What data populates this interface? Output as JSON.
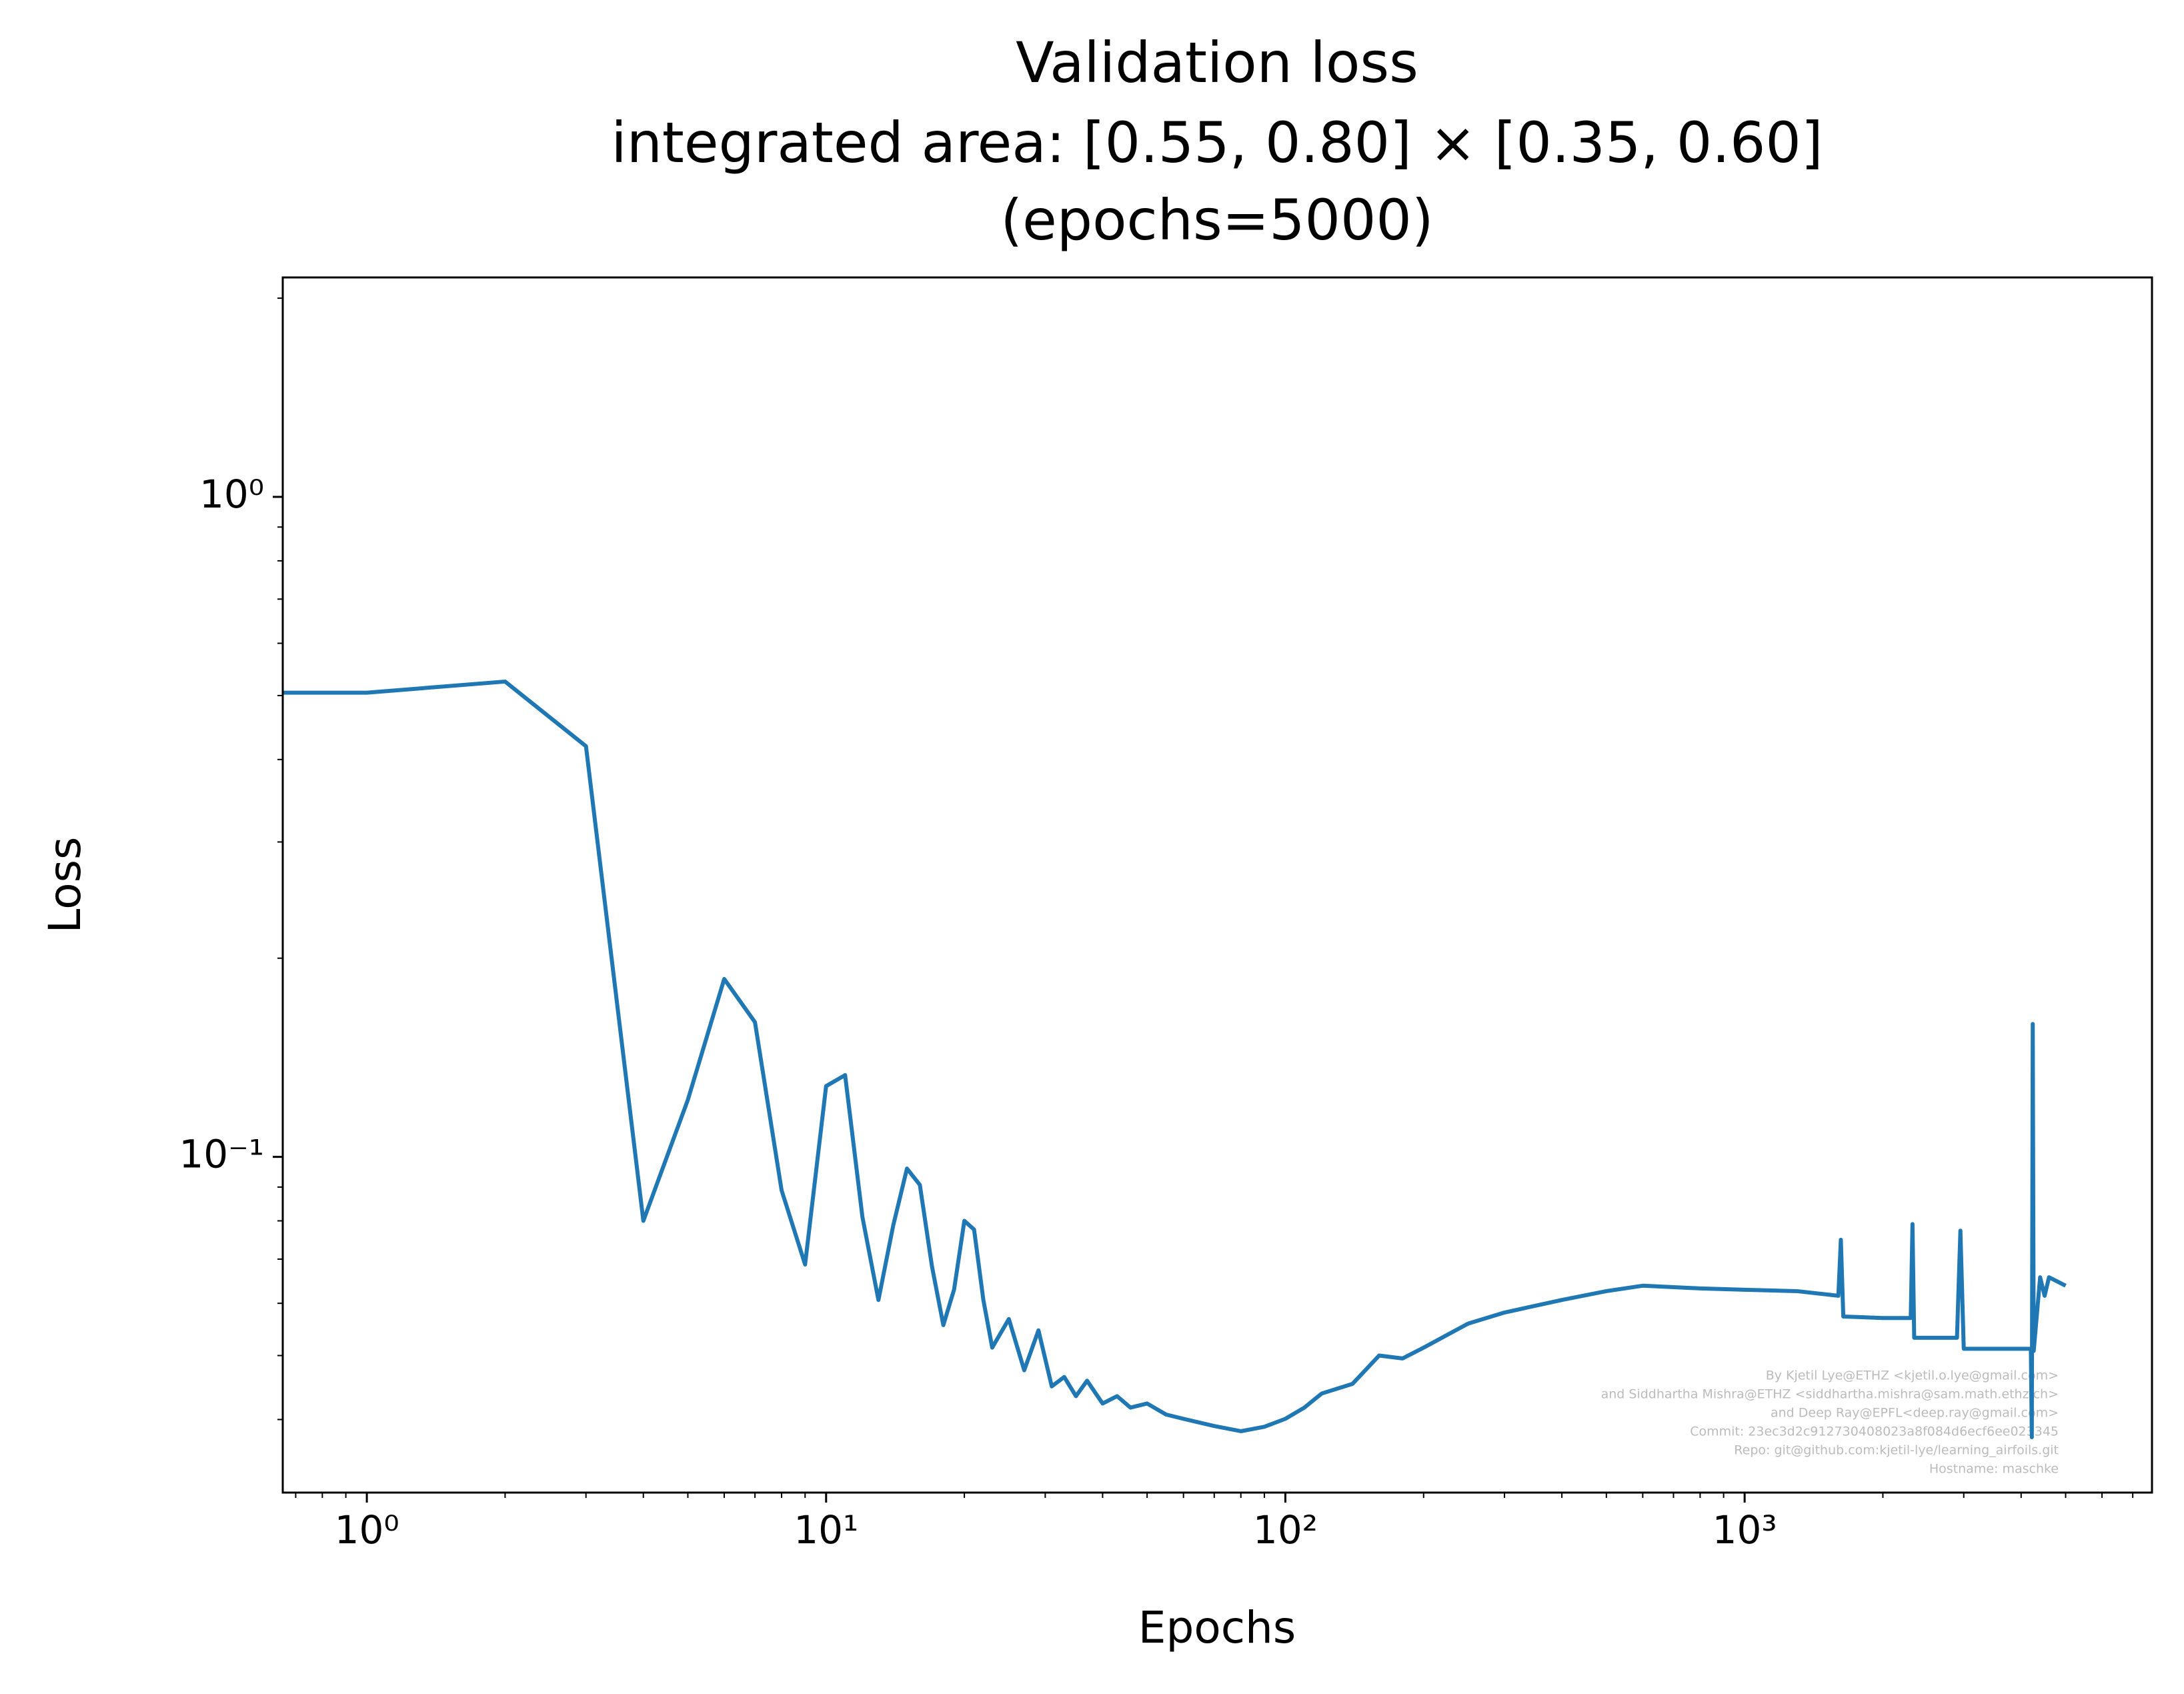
{
  "chart_data": {
    "type": "line",
    "title": [
      "Validation loss",
      "integrated area: [0.55, 0.80] × [0.35, 0.60]",
      "(epochs=5000)"
    ],
    "xlabel": "Epochs",
    "ylabel": "Loss",
    "xscale": "log",
    "yscale": "log",
    "grid": false,
    "xlim": [
      0.656,
      7709
    ],
    "ylim": [
      0.031,
      2.15
    ],
    "xticks": [
      {
        "value": 1,
        "label": "10⁰"
      },
      {
        "value": 10,
        "label": "10¹"
      },
      {
        "value": 100,
        "label": "10²"
      },
      {
        "value": 1000,
        "label": "10³"
      }
    ],
    "xminorticks": [
      0.7,
      0.8,
      0.9,
      2,
      3,
      4,
      5,
      6,
      7,
      8,
      9,
      20,
      30,
      40,
      50,
      60,
      70,
      80,
      90,
      200,
      300,
      400,
      500,
      600,
      700,
      800,
      900,
      2000,
      3000,
      4000,
      5000,
      6000,
      7000
    ],
    "yticks": [
      {
        "value": 0.1,
        "label": "10⁻¹"
      },
      {
        "value": 1,
        "label": "10⁰"
      }
    ],
    "yminorticks": [
      0.04,
      0.05,
      0.06,
      0.07,
      0.08,
      0.09,
      0.2,
      0.3,
      0.4,
      0.5,
      0.6,
      0.7,
      0.8,
      0.9,
      2
    ],
    "series": [
      {
        "name": "Validation loss",
        "color": "#1f77b4",
        "x": [
          0.656,
          1,
          2,
          3,
          4,
          5,
          6,
          7,
          8,
          9,
          10,
          11,
          12,
          13,
          14,
          15,
          16,
          17,
          18,
          19,
          20,
          21,
          22,
          23,
          25,
          27,
          29,
          31,
          33,
          35,
          37,
          40,
          43,
          46,
          50,
          55,
          60,
          70,
          80,
          90,
          100,
          110,
          120,
          140,
          160,
          180,
          200,
          250,
          300,
          400,
          500,
          600,
          800,
          1000,
          1300,
          1600,
          1620,
          1640,
          2000,
          2300,
          2320,
          2340,
          2900,
          2950,
          3000,
          4200,
          4220,
          4240,
          4260,
          4400,
          4500,
          4600,
          5000
        ],
        "values": [
          0.505,
          0.505,
          0.525,
          0.419,
          0.08,
          0.122,
          0.186,
          0.16,
          0.089,
          0.0687,
          0.128,
          0.133,
          0.081,
          0.0607,
          0.0787,
          0.096,
          0.0907,
          0.0683,
          0.0556,
          0.063,
          0.08,
          0.0776,
          0.0607,
          0.0514,
          0.0568,
          0.0475,
          0.0546,
          0.0449,
          0.0464,
          0.0434,
          0.0458,
          0.0423,
          0.0434,
          0.0417,
          0.0423,
          0.0407,
          0.0401,
          0.0391,
          0.0384,
          0.039,
          0.0401,
          0.0417,
          0.0438,
          0.0453,
          0.05,
          0.0495,
          0.0514,
          0.0559,
          0.0581,
          0.0607,
          0.0626,
          0.0638,
          0.0632,
          0.0629,
          0.0626,
          0.0616,
          0.0749,
          0.0573,
          0.057,
          0.057,
          0.0791,
          0.0532,
          0.0532,
          0.0773,
          0.0512,
          0.0512,
          0.0376,
          0.159,
          0.0508,
          0.0657,
          0.0616,
          0.0657,
          0.0638
        ]
      }
    ],
    "annotations": [
      "By Kjetil Lye@ETHZ <kjetil.o.lye@gmail.com>",
      "and Siddhartha Mishra@ETHZ <siddhartha.mishra@sam.math.ethz.ch>",
      "and Deep Ray@EPFL<deep.ray@gmail.com>",
      "Commit: 23ec3d2c912730408023a8f084d6ecf6ee023345",
      "Repo: git@github.com:kjetil-lye/learning_airfoils.git",
      "Hostname: maschke"
    ]
  }
}
